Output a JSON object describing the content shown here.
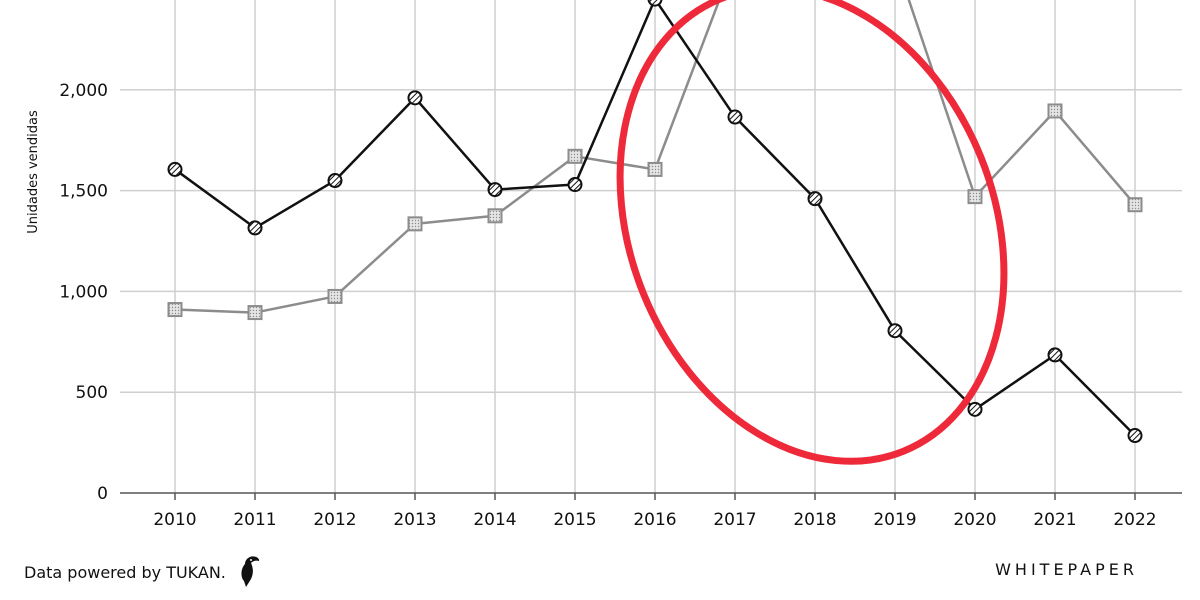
{
  "chart_data": {
    "type": "line",
    "x": [
      "2010",
      "2011",
      "2012",
      "2013",
      "2014",
      "2015",
      "2016",
      "2017",
      "2018",
      "2019",
      "2020",
      "2021",
      "2022"
    ],
    "series": [
      {
        "values": [
          1605,
          1315,
          1550,
          1960,
          1505,
          1530,
          2450,
          1865,
          1460,
          805,
          415,
          685,
          285
        ],
        "color": "#111111",
        "marker": "hatched-circle"
      },
      {
        "values": [
          910,
          895,
          975,
          1335,
          1375,
          1670,
          1605,
          2650,
          null,
          2650,
          1470,
          1895,
          1430
        ],
        "color": "#8c8c8c",
        "marker": "dotted-square"
      }
    ],
    "ylabel": "Unidades vendidas",
    "yticks": [
      0,
      500,
      1000,
      1500,
      2000
    ],
    "ytick_labels": [
      "0",
      "500",
      "1,000",
      "1,500",
      "2,000"
    ],
    "ylim": [
      0,
      2450
    ],
    "grid": true,
    "highlight": {
      "shape": "ellipse",
      "color": "#ee2a3a"
    }
  },
  "footer": {
    "credit": "Data powered by TUKAN.",
    "brand": "WHITEPAPER",
    "logo_icon": "toucan-icon"
  }
}
